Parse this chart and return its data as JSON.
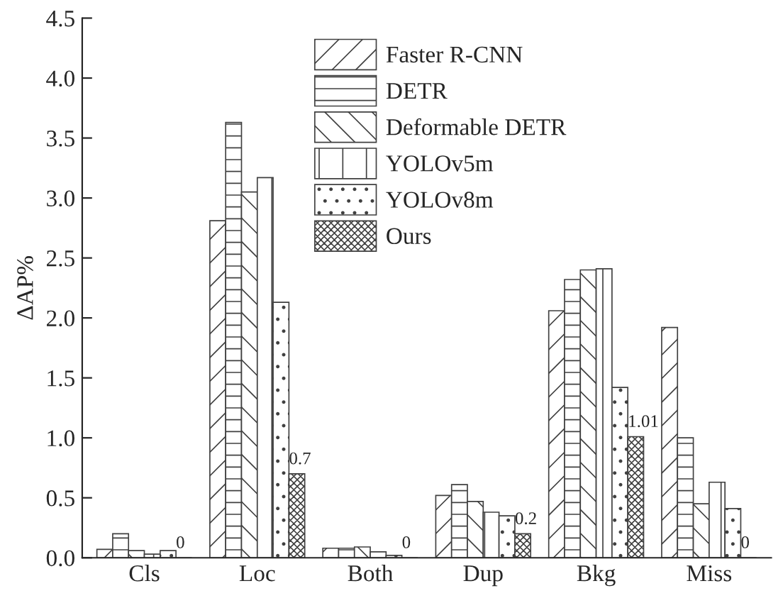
{
  "chart_data": {
    "type": "bar",
    "ylabel": "ΔAP%",
    "categories": [
      "Cls",
      "Loc",
      "Both",
      "Dup",
      "Bkg",
      "Miss"
    ],
    "ylim": [
      0,
      4.5
    ],
    "yticks": [
      {
        "value": 0,
        "label": "0.0"
      },
      0.5,
      {
        "value": 1,
        "label": "1.0"
      },
      1.5,
      {
        "value": 2,
        "label": "2.0"
      },
      2.5,
      {
        "value": 3,
        "label": "3.0"
      },
      3.5,
      {
        "value": 4,
        "label": "4.0"
      },
      4.5
    ],
    "grid": false,
    "legend": "top",
    "series": [
      {
        "name": "Faster R-CNN",
        "color": "#404040",
        "values": [
          0.07,
          2.81,
          0.08,
          0.52,
          2.06,
          1.92
        ]
      },
      {
        "name": "DETR",
        "color": "#404040",
        "values": [
          0.2,
          3.63,
          0.08,
          0.61,
          2.32,
          1.0
        ]
      },
      {
        "name": "Deformable DETR",
        "color": "#404040",
        "values": [
          0.06,
          3.05,
          0.09,
          0.47,
          2.4,
          0.45
        ]
      },
      {
        "name": "YOLOv5m",
        "color": "#404040",
        "values": [
          0.03,
          3.17,
          0.05,
          0.38,
          2.41,
          0.63
        ]
      },
      {
        "name": "YOLOv8m",
        "color": "#404040",
        "values": [
          0.06,
          2.13,
          0.02,
          0.35,
          1.42,
          0.41
        ]
      },
      {
        "name": "Ours",
        "color": "#404040",
        "values": [
          0,
          0.7,
          0,
          0.2,
          1.01,
          0
        ],
        "value_labels": [
          "0",
          "0.7",
          "0",
          "0.2",
          "1.01",
          "0"
        ]
      }
    ]
  }
}
